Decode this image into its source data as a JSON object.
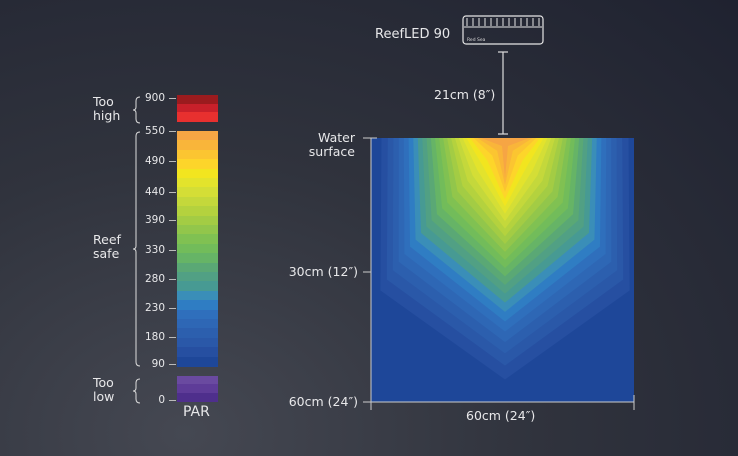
{
  "legend": {
    "zones": [
      {
        "label": "Too\nhigh",
        "colors": [
          "#9b1b1e",
          "#c8202a",
          "#e8302f"
        ]
      },
      {
        "label": "Reef\nsafe",
        "colors": [
          "#f6a544",
          "#f9b53a",
          "#fbc531",
          "#fdd52a",
          "#f2e51f",
          "#e3e32c",
          "#d4de36",
          "#c4d83b",
          "#b4d23e",
          "#a3cc44",
          "#92c64b",
          "#80c152",
          "#72bc5a",
          "#66b466",
          "#5aa875",
          "#51a084",
          "#479a93",
          "#3a8eb8",
          "#2f7dc3",
          "#2f6fbc",
          "#2e67b5",
          "#2c5fae",
          "#2a58a8",
          "#264fa1",
          "#1e4799"
        ]
      },
      {
        "label": "Too\nlow",
        "colors": [
          "#6a4aa0",
          "#5e3c98",
          "#4e2f8c"
        ]
      }
    ],
    "ticks": [
      "900",
      "550",
      "490",
      "440",
      "390",
      "330",
      "280",
      "230",
      "180",
      "90",
      "0"
    ],
    "unit_label": "PAR"
  },
  "fixture": {
    "name": "ReefLED 90",
    "logo_text": "Red Sea",
    "height_label": "21cm (8″)"
  },
  "plot": {
    "top_label": "Water\nsurface",
    "depth_mid_label": "30cm (12″)",
    "depth_bottom_label": "60cm (24″)",
    "width_label": "60cm (24″)"
  }
}
